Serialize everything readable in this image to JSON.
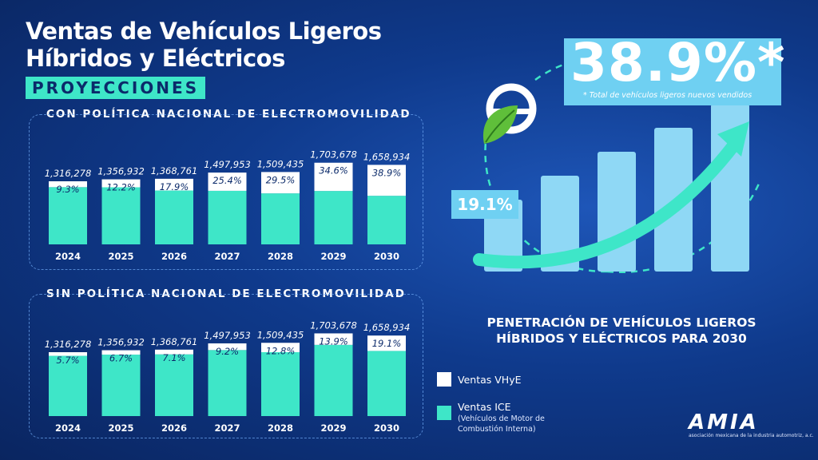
{
  "header": {
    "title_line1": "Ventas de Vehículos Ligeros",
    "title_line2": "Híbridos y Eléctricos",
    "pill": "PROYECCIONES"
  },
  "colors": {
    "ice": "#3ee6c8",
    "vhye": "#ffffff",
    "accent": "#6fd0f2",
    "background": "#0f3a8c"
  },
  "chart_data": [
    {
      "type": "bar",
      "title": "CON POLÍTICA NACIONAL DE ELECTROMOVILIDAD",
      "categories": [
        "2024",
        "2025",
        "2026",
        "2027",
        "2028",
        "2029",
        "2030"
      ],
      "totals": [
        1316278,
        1356932,
        1368761,
        1497953,
        1509435,
        1703678,
        1658934
      ],
      "total_labels": [
        "1,316,278",
        "1,356,932",
        "1,368,761",
        "1,497,953",
        "1,509,435",
        "1,703,678",
        "1,658,934"
      ],
      "vhye_share_pct": [
        9.3,
        12.2,
        17.9,
        25.4,
        29.5,
        34.6,
        38.9
      ],
      "pct_labels": [
        "9.3%",
        "12.2%",
        "17.9%",
        "25.4%",
        "29.5%",
        "34.6%",
        "38.9%"
      ],
      "series": [
        {
          "name": "Ventas VHyE",
          "color": "#ffffff"
        },
        {
          "name": "Ventas ICE",
          "color": "#3ee6c8"
        }
      ]
    },
    {
      "type": "bar",
      "title": "SIN POLÍTICA NACIONAL DE ELECTROMOVILIDAD",
      "categories": [
        "2024",
        "2025",
        "2026",
        "2027",
        "2028",
        "2029",
        "2030"
      ],
      "totals": [
        1316278,
        1356932,
        1368761,
        1497953,
        1509435,
        1703678,
        1658934
      ],
      "total_labels": [
        "1,316,278",
        "1,356,932",
        "1,368,761",
        "1,497,953",
        "1,509,435",
        "1,703,678",
        "1,658,934"
      ],
      "vhye_share_pct": [
        5.7,
        6.7,
        7.1,
        9.2,
        12.8,
        13.9,
        19.1
      ],
      "pct_labels": [
        "5.7%",
        "6.7%",
        "7.1%",
        "9.2%",
        "12.8%",
        "13.9%",
        "19.1%"
      ],
      "series": [
        {
          "name": "Ventas VHyE",
          "color": "#ffffff"
        },
        {
          "name": "Ventas ICE",
          "color": "#3ee6c8"
        }
      ]
    }
  ],
  "legend": {
    "vhye_label": "Ventas VHyE",
    "ice_label": "Ventas ICE",
    "ice_sub_line1": "(Vehículos de Motor de",
    "ice_sub_line2": "Combustión Interna)"
  },
  "right": {
    "big_value": "38.9%*",
    "big_note": "* Total de vehículos ligeros nuevos vendidos",
    "start_value": "19.1%",
    "penetration_line1": "PENETRACIÓN DE VEHÍCULOS LIGEROS",
    "penetration_line2": "HÍBRIDOS Y ELÉCTRICOS PARA 2030",
    "icon": "steering-wheel-leaf-icon",
    "growth_levels": [
      1,
      2,
      3,
      4,
      5
    ]
  },
  "logo": {
    "text": "AMIA",
    "subtitle": "asociación mexicana de la industria automotriz, a.c."
  }
}
